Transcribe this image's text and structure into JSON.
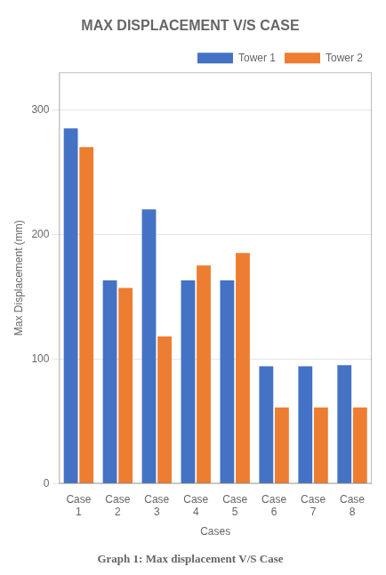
{
  "chart_data": {
    "type": "bar",
    "title": "MAX DISPLACEMENT V/S CASE",
    "subtitle": "Graph 1: Max displacement V/S Case",
    "x_label": "Cases",
    "y_label": "Max Displacement (mm)",
    "categories": [
      "Case\n1",
      "Case\n2",
      "Case\n3",
      "Case\n4",
      "Case\n5",
      "Case\n6",
      "Case\n7",
      "Case\n8"
    ],
    "series": [
      {
        "name": "Tower 1",
        "color": "#4472c4",
        "values": [
          285,
          163,
          220,
          163,
          163,
          94,
          94,
          95
        ]
      },
      {
        "name": "Tower 2",
        "color": "#ed7d31",
        "values": [
          270,
          157,
          118,
          175,
          185,
          61,
          61,
          61
        ]
      }
    ],
    "ylim": [
      0,
      330
    ],
    "yticks": [
      0,
      100,
      200,
      300
    ],
    "grid": true,
    "legend": "upper right"
  }
}
